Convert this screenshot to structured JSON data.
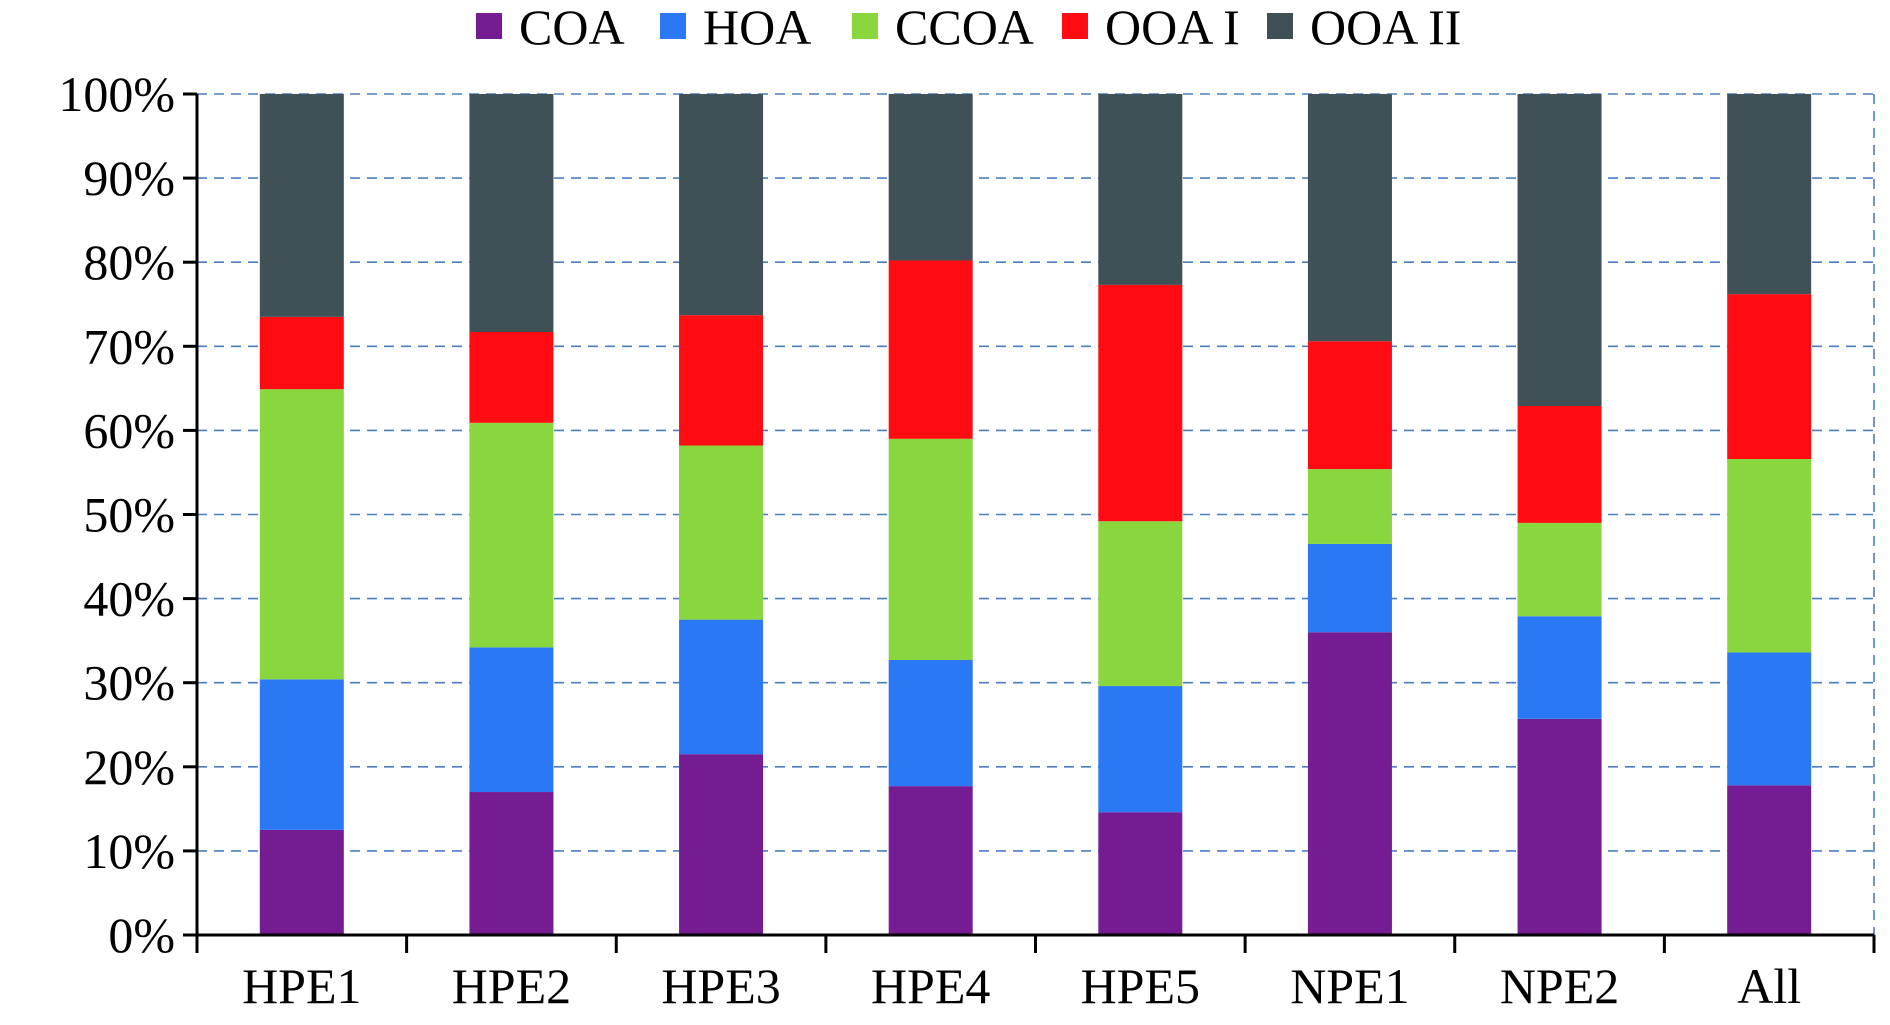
{
  "chart_data": {
    "type": "bar",
    "stacked": true,
    "title": "",
    "xlabel": "",
    "ylabel": "",
    "ylim": [
      0,
      100
    ],
    "yticks": [
      "0%",
      "10%",
      "20%",
      "30%",
      "40%",
      "50%",
      "60%",
      "70%",
      "80%",
      "90%",
      "100%"
    ],
    "legend_position": "top",
    "grid": true,
    "categories": [
      "HPE1",
      "HPE2",
      "HPE3",
      "HPE4",
      "HPE5",
      "NPE1",
      "NPE2",
      "All"
    ],
    "series": [
      {
        "name": "COA",
        "color": "#751c93",
        "values": [
          12.5,
          17.0,
          21.5,
          17.7,
          14.6,
          36.0,
          25.7,
          17.8
        ]
      },
      {
        "name": "HOA",
        "color": "#2a78f4",
        "values": [
          17.9,
          17.2,
          16.0,
          15.0,
          15.0,
          10.5,
          12.2,
          15.8
        ]
      },
      {
        "name": "CCOA",
        "color": "#89d63f",
        "values": [
          34.5,
          26.7,
          20.7,
          26.3,
          19.6,
          8.9,
          11.1,
          23.0
        ]
      },
      {
        "name": "OOA I",
        "color": "#ff0c12",
        "values": [
          8.6,
          10.8,
          15.5,
          21.2,
          28.1,
          15.2,
          13.9,
          19.6
        ]
      },
      {
        "name": "OOA II",
        "color": "#3f5057",
        "values": [
          26.5,
          28.3,
          26.3,
          19.8,
          22.7,
          29.4,
          37.1,
          23.8
        ]
      }
    ]
  }
}
